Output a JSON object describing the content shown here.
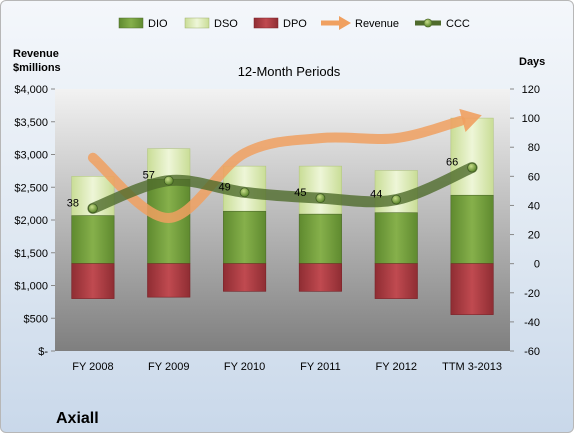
{
  "company": "Axiall",
  "chart_data": {
    "type": "bar",
    "title": "12-Month Periods",
    "categories": [
      "FY 2008",
      "FY 2009",
      "FY 2010",
      "FY 2011",
      "FY 2012",
      "TTM 3-2013"
    ],
    "left_axis": {
      "title_line1": "Revenue",
      "title_line2": "$millions",
      "ylim": [
        0,
        4000
      ],
      "ticks": [
        0,
        500,
        1000,
        1500,
        2000,
        2500,
        3000,
        3500,
        4000
      ],
      "tick_labels": [
        "$-",
        "$500",
        "$1,000",
        "$1,500",
        "$2,000",
        "$2,500",
        "$3,000",
        "$3,500",
        "$4,000"
      ]
    },
    "right_axis": {
      "title": "Days",
      "ylim": [
        -60,
        120
      ],
      "ticks": [
        -60,
        -40,
        -20,
        0,
        20,
        40,
        60,
        80,
        100,
        120
      ],
      "tick_labels": [
        "-60",
        "-40",
        "-20",
        "0",
        "20",
        "40",
        "60",
        "80",
        "100",
        "120"
      ]
    },
    "legend_position": "top",
    "series": [
      {
        "name": "DIO",
        "axis": "right",
        "kind": "stacked-bar",
        "color": "#6f9a3a",
        "values": [
          33,
          58,
          36,
          34,
          35,
          47
        ]
      },
      {
        "name": "DSO",
        "axis": "right",
        "kind": "stacked-bar",
        "color": "#d9eab3",
        "values": [
          27,
          21,
          31,
          33,
          29,
          53
        ]
      },
      {
        "name": "DPO",
        "axis": "right",
        "kind": "negative-bar",
        "color": "#a8383f",
        "values": [
          -24,
          -23,
          -19,
          -19,
          -24,
          -35
        ]
      },
      {
        "name": "Revenue",
        "axis": "left",
        "kind": "arrow-line",
        "color": "#f0a060",
        "values": [
          2950,
          2030,
          3020,
          3250,
          3250,
          3560
        ]
      },
      {
        "name": "CCC",
        "axis": "right",
        "kind": "line",
        "color": "#4f6b2c",
        "values": [
          38,
          57,
          49,
          45,
          44,
          66
        ]
      }
    ],
    "ccc_labels": [
      "38",
      "57",
      "49",
      "45",
      "44",
      "66"
    ],
    "grid": false
  }
}
